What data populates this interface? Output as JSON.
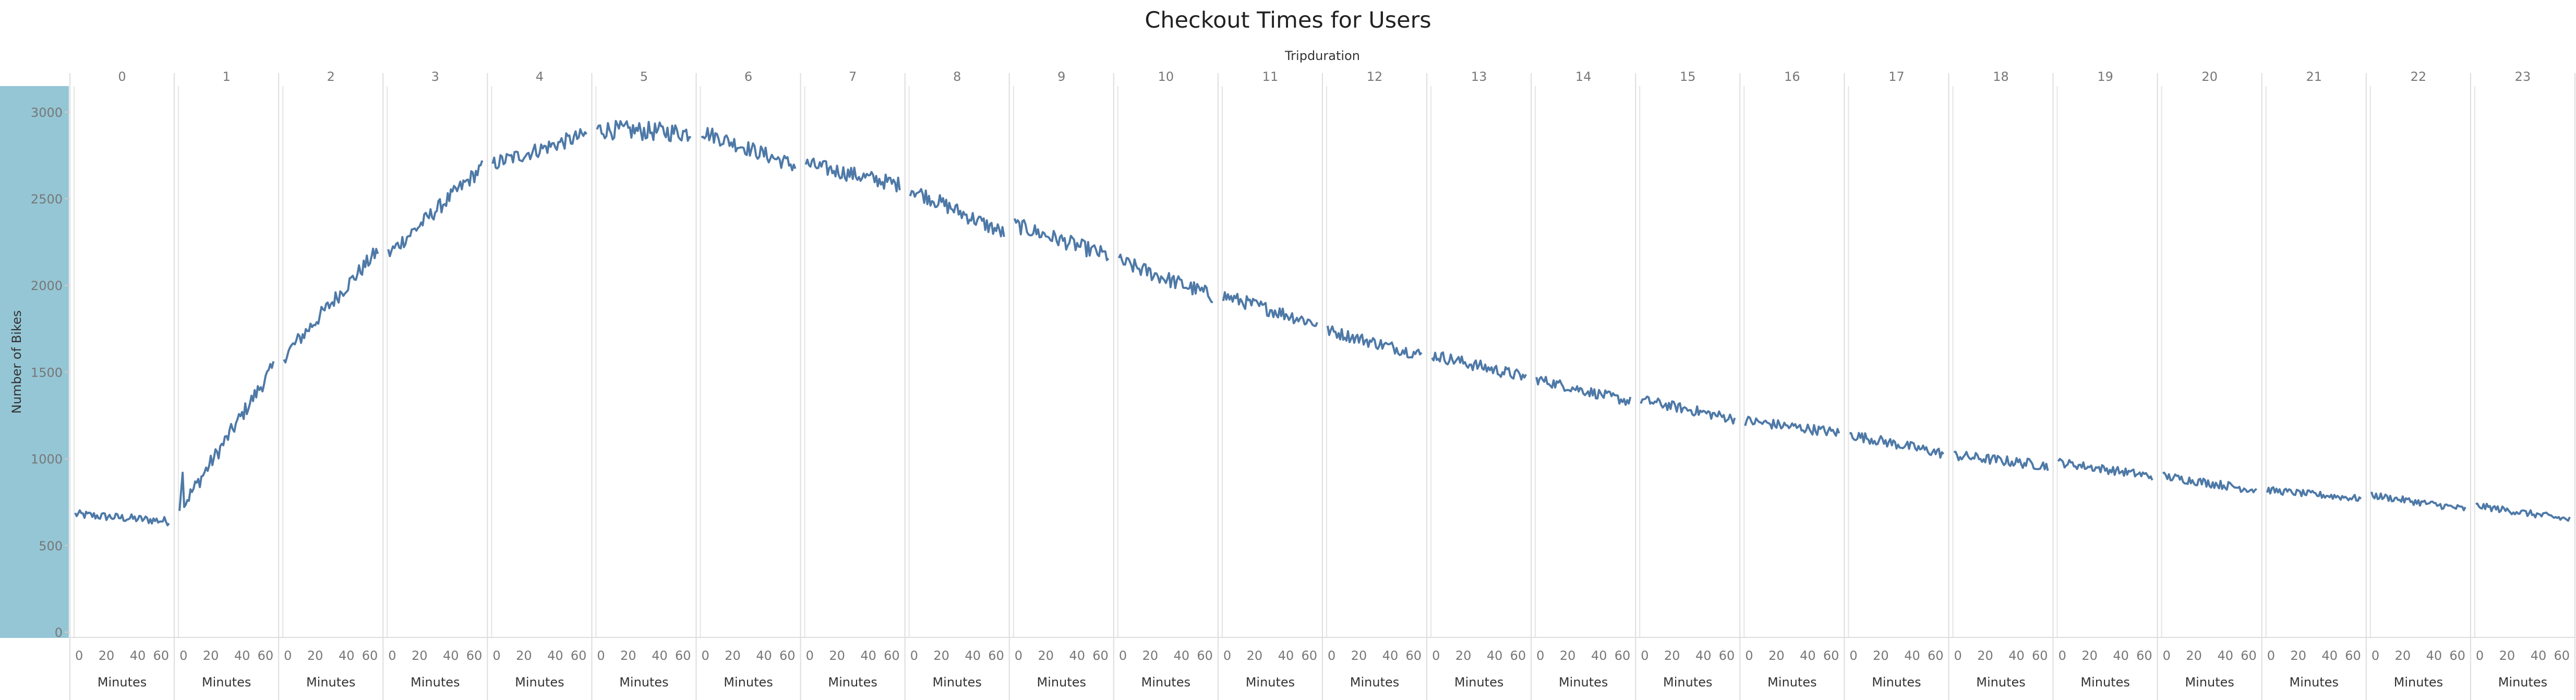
{
  "chart_data": {
    "type": "line",
    "title": "Checkout Times for Users",
    "column_header": "Tripduration",
    "ylabel": "Number of Bikes",
    "panel_xlabel": "Minutes",
    "ylim": [
      0,
      3000
    ],
    "y_ticks": [
      0,
      500,
      1000,
      1500,
      2000,
      2500,
      3000
    ],
    "x_ticks": [
      0,
      20,
      40,
      60
    ],
    "xlim": [
      0,
      60
    ],
    "grid": true,
    "line_color": "#4e79a7",
    "axis_band_color": "#95c6d5",
    "panels": [
      {
        "label": "0",
        "start": 680,
        "end": 640,
        "noise": 25
      },
      {
        "label": "1",
        "start": 700,
        "end": 1530,
        "noise": 45
      },
      {
        "label": "2",
        "start": 1590,
        "end": 2200,
        "noise": 45
      },
      {
        "label": "3",
        "start": 2180,
        "end": 2680,
        "noise": 45
      },
      {
        "label": "4",
        "start": 2700,
        "end": 2870,
        "noise": 45
      },
      {
        "label": "5",
        "start": 2900,
        "end": 2880,
        "noise": 55
      },
      {
        "label": "6",
        "start": 2890,
        "end": 2690,
        "noise": 45
      },
      {
        "label": "7",
        "start": 2700,
        "end": 2580,
        "noise": 45
      },
      {
        "label": "8",
        "start": 2560,
        "end": 2300,
        "noise": 45
      },
      {
        "label": "9",
        "start": 2350,
        "end": 2170,
        "noise": 45
      },
      {
        "label": "10",
        "start": 2140,
        "end": 1940,
        "noise": 45
      },
      {
        "label": "11",
        "start": 1940,
        "end": 1780,
        "noise": 40
      },
      {
        "label": "12",
        "start": 1740,
        "end": 1600,
        "noise": 35
      },
      {
        "label": "13",
        "start": 1600,
        "end": 1470,
        "noise": 35
      },
      {
        "label": "14",
        "start": 1460,
        "end": 1330,
        "noise": 30
      },
      {
        "label": "15",
        "start": 1340,
        "end": 1230,
        "noise": 30
      },
      {
        "label": "16",
        "start": 1220,
        "end": 1150,
        "noise": 30
      },
      {
        "label": "17",
        "start": 1140,
        "end": 1030,
        "noise": 30
      },
      {
        "label": "18",
        "start": 1020,
        "end": 960,
        "noise": 30
      },
      {
        "label": "19",
        "start": 980,
        "end": 900,
        "noise": 25
      },
      {
        "label": "20",
        "start": 900,
        "end": 820,
        "noise": 25
      },
      {
        "label": "21",
        "start": 820,
        "end": 770,
        "noise": 20
      },
      {
        "label": "22",
        "start": 790,
        "end": 710,
        "noise": 20
      },
      {
        "label": "23",
        "start": 730,
        "end": 650,
        "noise": 20
      }
    ]
  }
}
